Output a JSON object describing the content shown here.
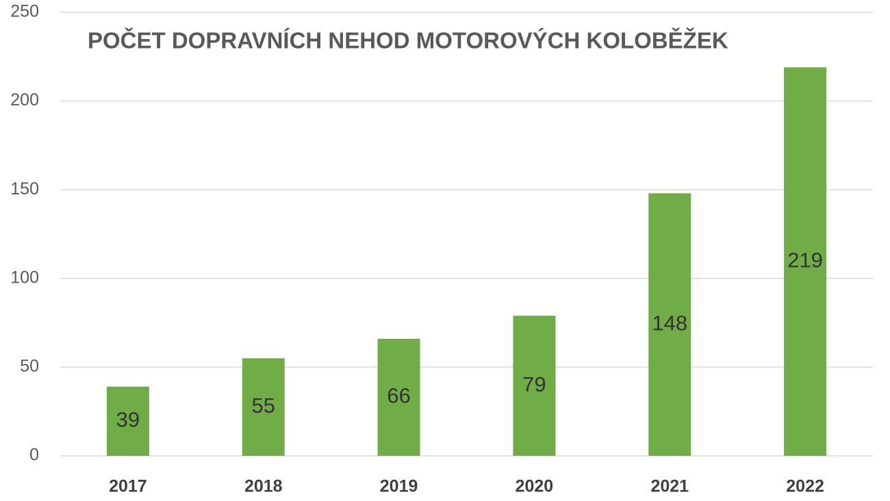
{
  "chart_data": {
    "type": "bar",
    "title": "POČET DOPRAVNÍCH NEHOD MOTOROVÝCH KOLOBĚŽEK",
    "categories": [
      "2017",
      "2018",
      "2019",
      "2020",
      "2021",
      "2022"
    ],
    "values": [
      39,
      55,
      66,
      79,
      148,
      219
    ],
    "color": "#70ad47",
    "ylim": [
      0,
      250
    ],
    "yticks": [
      0,
      50,
      100,
      150,
      200,
      250
    ],
    "grid": true,
    "data_labels": true
  }
}
